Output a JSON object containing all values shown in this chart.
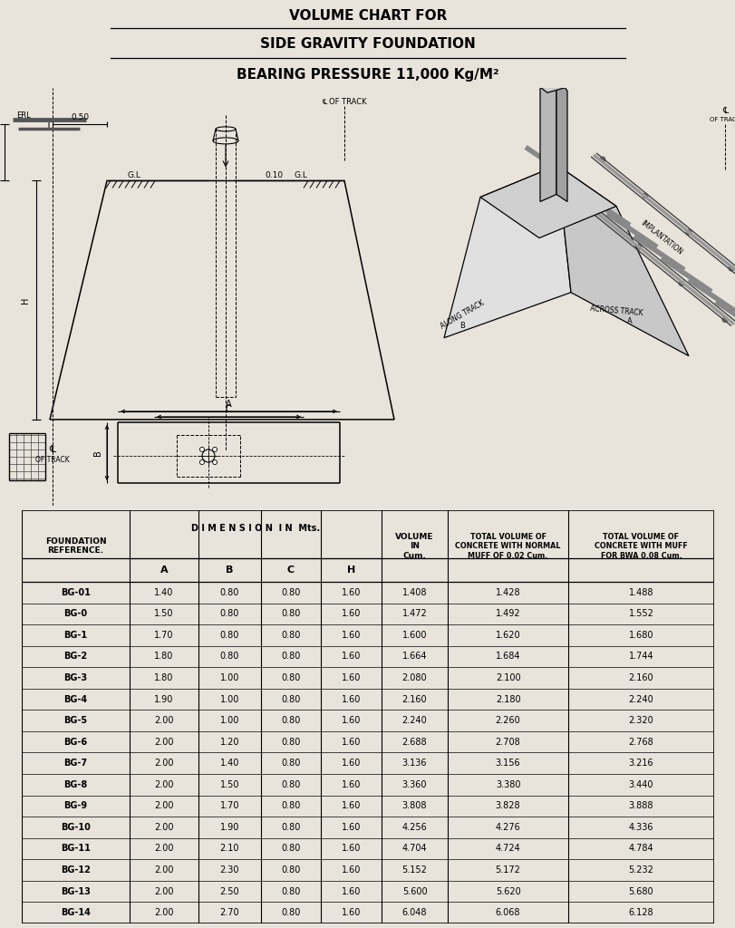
{
  "title_line1": "VOLUME CHART FOR",
  "title_line2": "SIDE GRAVITY FOUNDATION",
  "title_line3": "BEARING PRESSURE 11,000 Kg/M²",
  "rows": [
    [
      "BG-01",
      "1.40",
      "0.80",
      "0.80",
      "1.60",
      "1.408",
      "1.428",
      "1.488"
    ],
    [
      "BG-0",
      "1.50",
      "0.80",
      "0.80",
      "1.60",
      "1.472",
      "1.492",
      "1.552"
    ],
    [
      "BG-1",
      "1.70",
      "0.80",
      "0.80",
      "1.60",
      "1.600",
      "1.620",
      "1.680"
    ],
    [
      "BG-2",
      "1.80",
      "0.80",
      "0.80",
      "1.60",
      "1.664",
      "1.684",
      "1.744"
    ],
    [
      "BG-3",
      "1.80",
      "1.00",
      "0.80",
      "1.60",
      "2.080",
      "2.100",
      "2.160"
    ],
    [
      "BG-4",
      "1.90",
      "1.00",
      "0.80",
      "1.60",
      "2.160",
      "2.180",
      "2.240"
    ],
    [
      "BG-5",
      "2.00",
      "1.00",
      "0.80",
      "1.60",
      "2.240",
      "2.260",
      "2.320"
    ],
    [
      "BG-6",
      "2.00",
      "1.20",
      "0.80",
      "1.60",
      "2.688",
      "2.708",
      "2.768"
    ],
    [
      "BG-7",
      "2.00",
      "1.40",
      "0.80",
      "1.60",
      "3.136",
      "3.156",
      "3.216"
    ],
    [
      "BG-8",
      "2.00",
      "1.50",
      "0.80",
      "1.60",
      "3.360",
      "3.380",
      "3.440"
    ],
    [
      "BG-9",
      "2.00",
      "1.70",
      "0.80",
      "1.60",
      "3.808",
      "3.828",
      "3.888"
    ],
    [
      "BG-10",
      "2.00",
      "1.90",
      "0.80",
      "1.60",
      "4.256",
      "4.276",
      "4.336"
    ],
    [
      "BG-11",
      "2.00",
      "2.10",
      "0.80",
      "1.60",
      "4.704",
      "4.724",
      "4.784"
    ],
    [
      "BG-12",
      "2.00",
      "2.30",
      "0.80",
      "1.60",
      "5.152",
      "5.172",
      "5.232"
    ],
    [
      "BG-13",
      "2.00",
      "2.50",
      "0.80",
      "1.60",
      "5.600",
      "5.620",
      "5.680"
    ],
    [
      "BG-14",
      "2.00",
      "2.70",
      "0.80",
      "1.60",
      "6.048",
      "6.068",
      "6.128"
    ]
  ],
  "bg_color": "#ffffff",
  "line_color": "#000000",
  "fig_bg": "#e8e4dc"
}
